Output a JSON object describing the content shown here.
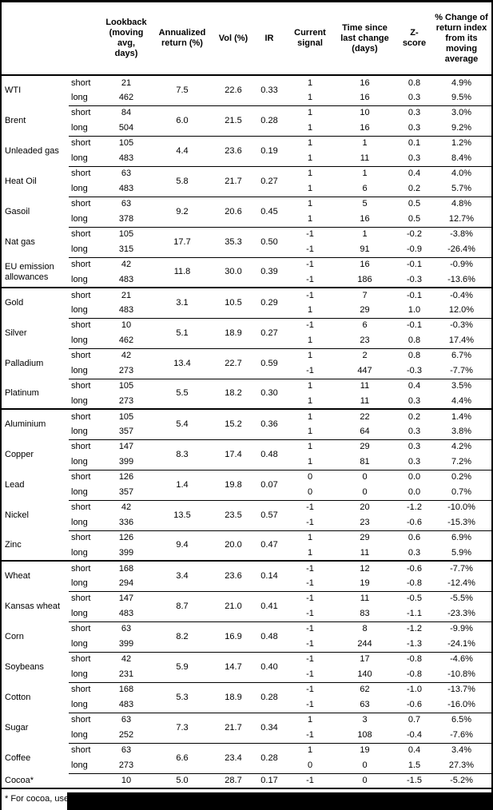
{
  "header": {
    "cols": [
      "Lookback (moving avg, days)",
      "Annualized return (%)",
      "Vol (%)",
      "IR",
      "Current signal",
      "Time since last change (days)",
      "Z-score",
      "% Change of return index from its moving average"
    ]
  },
  "groups": [
    {
      "name": "WTI",
      "ann": "7.5",
      "vol": "22.6",
      "ir": "0.33",
      "end": "thin",
      "legs": [
        {
          "leg": "short",
          "lookback": "21",
          "signal": "1",
          "days": "16",
          "z": "0.8",
          "pct": "4.9%"
        },
        {
          "leg": "long",
          "lookback": "462",
          "signal": "1",
          "days": "16",
          "z": "0.3",
          "pct": "9.5%"
        }
      ]
    },
    {
      "name": "Brent",
      "ann": "6.0",
      "vol": "21.5",
      "ir": "0.28",
      "end": "thin",
      "legs": [
        {
          "leg": "short",
          "lookback": "84",
          "signal": "1",
          "days": "10",
          "z": "0.3",
          "pct": "3.0%"
        },
        {
          "leg": "long",
          "lookback": "504",
          "signal": "1",
          "days": "16",
          "z": "0.3",
          "pct": "9.2%"
        }
      ]
    },
    {
      "name": "Unleaded gas",
      "ann": "4.4",
      "vol": "23.6",
      "ir": "0.19",
      "end": "thin",
      "legs": [
        {
          "leg": "short",
          "lookback": "105",
          "signal": "1",
          "days": "1",
          "z": "0.1",
          "pct": "1.2%"
        },
        {
          "leg": "long",
          "lookback": "483",
          "signal": "1",
          "days": "11",
          "z": "0.3",
          "pct": "8.4%"
        }
      ]
    },
    {
      "name": "Heat Oil",
      "ann": "5.8",
      "vol": "21.7",
      "ir": "0.27",
      "end": "thin",
      "legs": [
        {
          "leg": "short",
          "lookback": "63",
          "signal": "1",
          "days": "1",
          "z": "0.4",
          "pct": "4.0%"
        },
        {
          "leg": "long",
          "lookback": "483",
          "signal": "1",
          "days": "6",
          "z": "0.2",
          "pct": "5.7%"
        }
      ]
    },
    {
      "name": "Gasoil",
      "ann": "9.2",
      "vol": "20.6",
      "ir": "0.45",
      "end": "thin",
      "legs": [
        {
          "leg": "short",
          "lookback": "63",
          "signal": "1",
          "days": "5",
          "z": "0.5",
          "pct": "4.8%"
        },
        {
          "leg": "long",
          "lookback": "378",
          "signal": "1",
          "days": "16",
          "z": "0.5",
          "pct": "12.7%"
        }
      ]
    },
    {
      "name": "Nat gas",
      "ann": "17.7",
      "vol": "35.3",
      "ir": "0.50",
      "end": "thin",
      "legs": [
        {
          "leg": "short",
          "lookback": "105",
          "signal": "-1",
          "days": "1",
          "z": "-0.2",
          "pct": "-3.8%"
        },
        {
          "leg": "long",
          "lookback": "315",
          "signal": "-1",
          "days": "91",
          "z": "-0.9",
          "pct": "-26.4%"
        }
      ]
    },
    {
      "name": "EU emission allowances",
      "ann": "11.8",
      "vol": "30.0",
      "ir": "0.39",
      "end": "thick",
      "legs": [
        {
          "leg": "short",
          "lookback": "42",
          "signal": "-1",
          "days": "16",
          "z": "-0.1",
          "pct": "-0.9%"
        },
        {
          "leg": "long",
          "lookback": "483",
          "signal": "-1",
          "days": "186",
          "z": "-0.3",
          "pct": "-13.6%"
        }
      ]
    },
    {
      "name": "Gold",
      "ann": "3.1",
      "vol": "10.5",
      "ir": "0.29",
      "end": "thin",
      "legs": [
        {
          "leg": "short",
          "lookback": "21",
          "signal": "-1",
          "days": "7",
          "z": "-0.1",
          "pct": "-0.4%"
        },
        {
          "leg": "long",
          "lookback": "483",
          "signal": "1",
          "days": "29",
          "z": "1.0",
          "pct": "12.0%"
        }
      ]
    },
    {
      "name": "Silver",
      "ann": "5.1",
      "vol": "18.9",
      "ir": "0.27",
      "end": "thin",
      "legs": [
        {
          "leg": "short",
          "lookback": "10",
          "signal": "-1",
          "days": "6",
          "z": "-0.1",
          "pct": "-0.3%"
        },
        {
          "leg": "long",
          "lookback": "462",
          "signal": "1",
          "days": "23",
          "z": "0.8",
          "pct": "17.4%"
        }
      ]
    },
    {
      "name": "Palladium",
      "ann": "13.4",
      "vol": "22.7",
      "ir": "0.59",
      "end": "thin",
      "legs": [
        {
          "leg": "short",
          "lookback": "42",
          "signal": "1",
          "days": "2",
          "z": "0.8",
          "pct": "6.7%"
        },
        {
          "leg": "long",
          "lookback": "273",
          "signal": "-1",
          "days": "447",
          "z": "-0.3",
          "pct": "-7.7%"
        }
      ]
    },
    {
      "name": "Platinum",
      "ann": "5.5",
      "vol": "18.2",
      "ir": "0.30",
      "end": "thick",
      "legs": [
        {
          "leg": "short",
          "lookback": "105",
          "signal": "1",
          "days": "11",
          "z": "0.4",
          "pct": "3.5%"
        },
        {
          "leg": "long",
          "lookback": "273",
          "signal": "1",
          "days": "11",
          "z": "0.3",
          "pct": "4.4%"
        }
      ]
    },
    {
      "name": "Aluminium",
      "ann": "5.4",
      "vol": "15.2",
      "ir": "0.36",
      "end": "thin",
      "legs": [
        {
          "leg": "short",
          "lookback": "105",
          "signal": "1",
          "days": "22",
          "z": "0.2",
          "pct": "1.4%"
        },
        {
          "leg": "long",
          "lookback": "357",
          "signal": "1",
          "days": "64",
          "z": "0.3",
          "pct": "3.8%"
        }
      ]
    },
    {
      "name": "Copper",
      "ann": "8.3",
      "vol": "17.4",
      "ir": "0.48",
      "end": "thin",
      "legs": [
        {
          "leg": "short",
          "lookback": "147",
          "signal": "1",
          "days": "29",
          "z": "0.3",
          "pct": "4.2%"
        },
        {
          "leg": "long",
          "lookback": "399",
          "signal": "1",
          "days": "81",
          "z": "0.3",
          "pct": "7.2%"
        }
      ]
    },
    {
      "name": "Lead",
      "ann": "1.4",
      "vol": "19.8",
      "ir": "0.07",
      "end": "thin",
      "legs": [
        {
          "leg": "short",
          "lookback": "126",
          "signal": "0",
          "days": "0",
          "z": "0.0",
          "pct": "0.2%"
        },
        {
          "leg": "long",
          "lookback": "357",
          "signal": "0",
          "days": "0",
          "z": "0.0",
          "pct": "0.7%"
        }
      ]
    },
    {
      "name": "Nickel",
      "ann": "13.5",
      "vol": "23.5",
      "ir": "0.57",
      "end": "thin",
      "legs": [
        {
          "leg": "short",
          "lookback": "42",
          "signal": "-1",
          "days": "20",
          "z": "-1.2",
          "pct": "-10.0%"
        },
        {
          "leg": "long",
          "lookback": "336",
          "signal": "-1",
          "days": "23",
          "z": "-0.6",
          "pct": "-15.3%"
        }
      ]
    },
    {
      "name": "Zinc",
      "ann": "9.4",
      "vol": "20.0",
      "ir": "0.47",
      "end": "thick",
      "legs": [
        {
          "leg": "short",
          "lookback": "126",
          "signal": "1",
          "days": "29",
          "z": "0.6",
          "pct": "6.9%"
        },
        {
          "leg": "long",
          "lookback": "399",
          "signal": "1",
          "days": "11",
          "z": "0.3",
          "pct": "5.9%"
        }
      ]
    },
    {
      "name": "Wheat",
      "ann": "3.4",
      "vol": "23.6",
      "ir": "0.14",
      "end": "thin",
      "legs": [
        {
          "leg": "short",
          "lookback": "168",
          "signal": "-1",
          "days": "12",
          "z": "-0.6",
          "pct": "-7.7%"
        },
        {
          "leg": "long",
          "lookback": "294",
          "signal": "-1",
          "days": "19",
          "z": "-0.8",
          "pct": "-12.4%"
        }
      ]
    },
    {
      "name": "Kansas wheat",
      "ann": "8.7",
      "vol": "21.0",
      "ir": "0.41",
      "end": "thin",
      "legs": [
        {
          "leg": "short",
          "lookback": "147",
          "signal": "-1",
          "days": "11",
          "z": "-0.5",
          "pct": "-5.5%"
        },
        {
          "leg": "long",
          "lookback": "483",
          "signal": "-1",
          "days": "83",
          "z": "-1.1",
          "pct": "-23.3%"
        }
      ]
    },
    {
      "name": "Corn",
      "ann": "8.2",
      "vol": "16.9",
      "ir": "0.48",
      "end": "thin",
      "legs": [
        {
          "leg": "short",
          "lookback": "63",
          "signal": "-1",
          "days": "8",
          "z": "-1.2",
          "pct": "-9.9%"
        },
        {
          "leg": "long",
          "lookback": "399",
          "signal": "-1",
          "days": "244",
          "z": "-1.3",
          "pct": "-24.1%"
        }
      ]
    },
    {
      "name": "Soybeans",
      "ann": "5.9",
      "vol": "14.7",
      "ir": "0.40",
      "end": "thin",
      "legs": [
        {
          "leg": "short",
          "lookback": "42",
          "signal": "-1",
          "days": "17",
          "z": "-0.8",
          "pct": "-4.6%"
        },
        {
          "leg": "long",
          "lookback": "231",
          "signal": "-1",
          "days": "140",
          "z": "-0.8",
          "pct": "-10.8%"
        }
      ]
    },
    {
      "name": "Cotton",
      "ann": "5.3",
      "vol": "18.9",
      "ir": "0.28",
      "end": "thin",
      "legs": [
        {
          "leg": "short",
          "lookback": "168",
          "signal": "-1",
          "days": "62",
          "z": "-1.0",
          "pct": "-13.7%"
        },
        {
          "leg": "long",
          "lookback": "483",
          "signal": "-1",
          "days": "63",
          "z": "-0.6",
          "pct": "-16.0%"
        }
      ]
    },
    {
      "name": "Sugar",
      "ann": "7.3",
      "vol": "21.7",
      "ir": "0.34",
      "end": "thin",
      "legs": [
        {
          "leg": "short",
          "lookback": "63",
          "signal": "1",
          "days": "3",
          "z": "0.7",
          "pct": "6.5%"
        },
        {
          "leg": "long",
          "lookback": "252",
          "signal": "-1",
          "days": "108",
          "z": "-0.4",
          "pct": "-7.6%"
        }
      ]
    },
    {
      "name": "Coffee",
      "ann": "6.6",
      "vol": "23.4",
      "ir": "0.28",
      "end": "thin",
      "legs": [
        {
          "leg": "short",
          "lookback": "63",
          "signal": "1",
          "days": "19",
          "z": "0.4",
          "pct": "3.4%"
        },
        {
          "leg": "long",
          "lookback": "273",
          "signal": "0",
          "days": "0",
          "z": "1.5",
          "pct": "27.3%"
        }
      ]
    },
    {
      "name": "Cocoa*",
      "ann": "5.0",
      "vol": "28.7",
      "ir": "0.17",
      "end": "thick",
      "legs": [
        {
          "leg": "",
          "lookback": "10",
          "signal": "-1",
          "days": "0",
          "z": "-1.5",
          "pct": "-5.2%"
        }
      ]
    }
  ],
  "footnote": {
    "text": "* For cocoa, uses o"
  }
}
